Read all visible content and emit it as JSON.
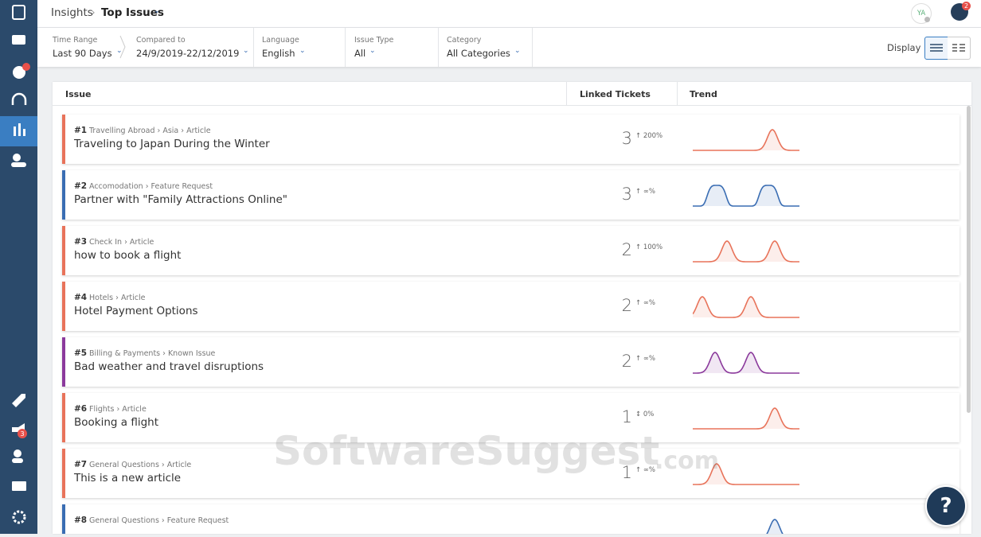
{
  "header": {
    "breadcrumb": "Insights",
    "page_title": "Top Issues",
    "avatar": "YA",
    "notifications": "2"
  },
  "sidebar": {
    "campaigns_badge": "3"
  },
  "filters": [
    {
      "label": "Time Range",
      "value": "Last 90 Days"
    },
    {
      "label": "Compared to",
      "value": "24/9/2019-22/12/2019"
    },
    {
      "label": "Language",
      "value": "English"
    },
    {
      "label": "Issue Type",
      "value": "All"
    },
    {
      "label": "Category",
      "value": "All Categories"
    }
  ],
  "display_label": "Display",
  "table": {
    "columns": [
      "Issue",
      "Linked Tickets",
      "Trend"
    ],
    "rows": [
      {
        "rank": "#1",
        "path": "Travelling Abroad › Asia › Article",
        "title": "Traveling to Japan During the Winter",
        "linked_tickets": 3,
        "change": "↑ 200%",
        "color": "#e8735a"
      },
      {
        "rank": "#2",
        "path": "Accomodation › Feature Request",
        "title": "Partner with \"Family Attractions Online\"",
        "linked_tickets": 3,
        "change": "↑ ∞%",
        "color": "#3a6db3"
      },
      {
        "rank": "#3",
        "path": "Check In › Article",
        "title": "how to book a flight",
        "linked_tickets": 2,
        "change": "↑ 100%",
        "color": "#e8735a"
      },
      {
        "rank": "#4",
        "path": "Hotels › Article",
        "title": "Hotel Payment Options",
        "linked_tickets": 2,
        "change": "↑ ∞%",
        "color": "#e8735a"
      },
      {
        "rank": "#5",
        "path": "Billing & Payments › Known Issue",
        "title": "Bad weather and travel disruptions",
        "linked_tickets": 2,
        "change": "↑ ∞%",
        "color": "#8b3a9c"
      },
      {
        "rank": "#6",
        "path": "Flights › Article",
        "title": "Booking a flight",
        "linked_tickets": 1,
        "change": "↕ 0%",
        "color": "#e8735a"
      },
      {
        "rank": "#7",
        "path": "General Questions › Article",
        "title": "This is a new article",
        "linked_tickets": 1,
        "change": "↑ ∞%",
        "color": "#e8735a"
      },
      {
        "rank": "#8",
        "path": "General Questions › Feature Request",
        "color": "#3a6db3"
      }
    ]
  },
  "watermark": "SoftwareSuggest",
  "watermark_suffix": ".com",
  "help_label": "?"
}
